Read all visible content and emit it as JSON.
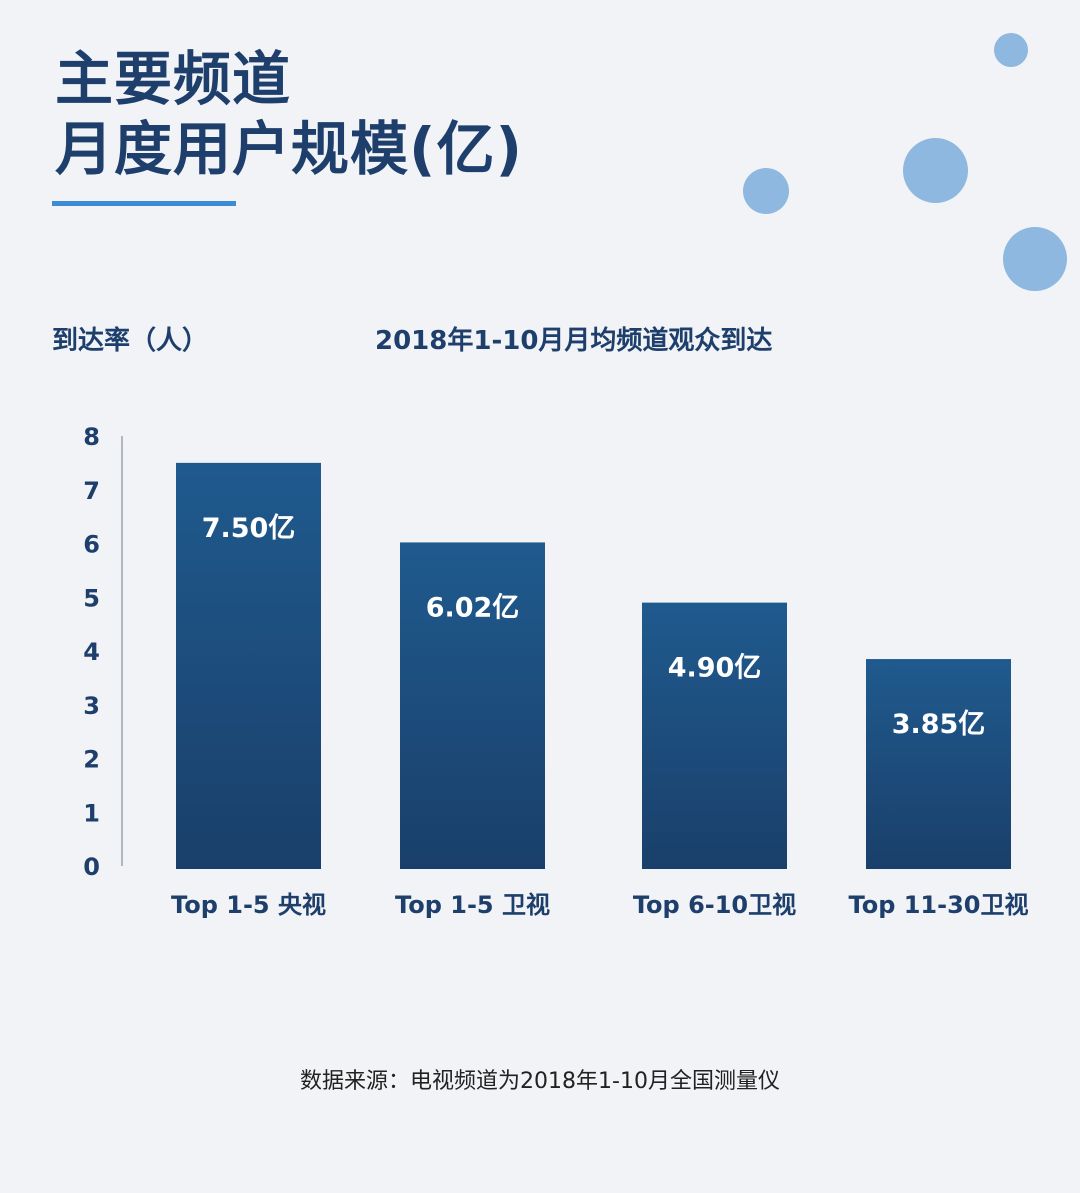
{
  "header": {
    "title_line1": "主要频道",
    "title_line2": "月度用户规模(亿)"
  },
  "colors": {
    "title": "#1e3f6c",
    "accent": "#3d8ad6",
    "bubble": "#8eb8e0",
    "bar_top": "#1f5a8e",
    "bar_bottom": "#1a3f6a",
    "background": "#f1f3f6"
  },
  "chart_data": {
    "type": "bar",
    "title": "2018年1-10月月均频道观众到达",
    "ylabel": "到达率（人）",
    "xlabel": "",
    "categories": [
      "Top 1-5 央视",
      "Top 1-5 卫视",
      "Top 6-10卫视",
      "Top 11-30卫视"
    ],
    "values": [
      7.5,
      6.02,
      4.9,
      3.85
    ],
    "data_labels": [
      "7.50亿",
      "6.02亿",
      "4.90亿",
      "3.85亿"
    ],
    "yticks": [
      "0",
      "1",
      "2",
      "3",
      "4",
      "5",
      "6",
      "7",
      "8"
    ],
    "ylim": [
      0,
      8
    ],
    "grid": false,
    "legend": "none"
  },
  "footer": {
    "source": "数据来源：电视频道为2018年1-10月全国测量仪"
  }
}
